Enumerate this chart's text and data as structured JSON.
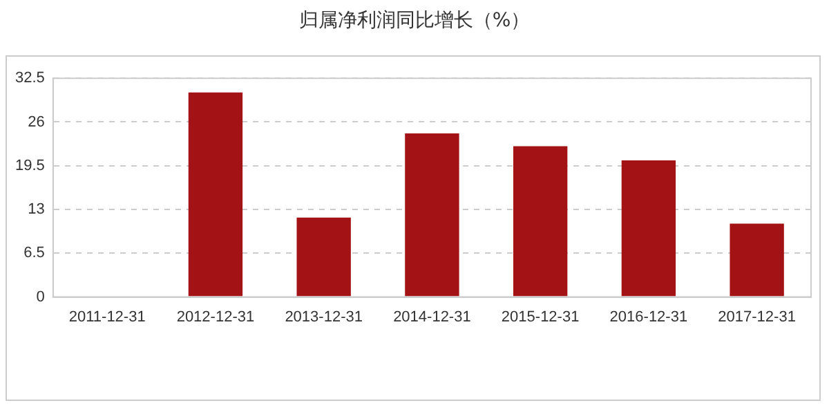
{
  "chart_data": {
    "type": "bar",
    "title": "归属净利润同比增长（%）",
    "categories": [
      "2011-12-31",
      "2012-12-31",
      "2013-12-31",
      "2014-12-31",
      "2015-12-31",
      "2016-12-31",
      "2017-12-31"
    ],
    "values": [
      null,
      30.4,
      11.8,
      24.3,
      22.4,
      20.3,
      10.9
    ],
    "color": "#a31214",
    "ylim": [
      0,
      32.5
    ],
    "yticks": [
      0,
      6.5,
      13,
      19.5,
      26,
      32.5
    ],
    "grid": "y",
    "legend": false
  }
}
